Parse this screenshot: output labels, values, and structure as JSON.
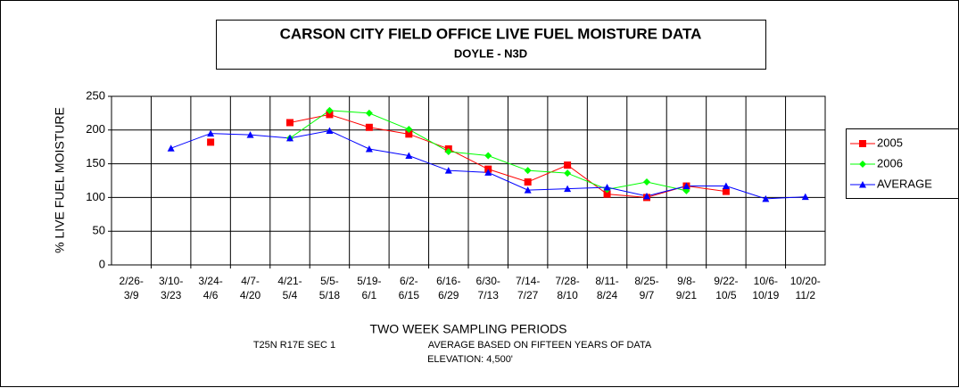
{
  "chart_data": {
    "type": "line",
    "title": "CARSON CITY FIELD OFFICE  LIVE FUEL MOISTURE DATA",
    "subtitle": "DOYLE - N3D",
    "y_label": "% LIVE FUEL MOISTURE",
    "x_label": "TWO WEEK SAMPLING PERIODS",
    "notes": [
      "T25N R17E SEC 1",
      "AVERAGE BASED ON FIFTEEN YEARS OF DATA",
      "ELEVATION: 4,500'"
    ],
    "categories": [
      "2/26- 3/9",
      "3/10- 3/23",
      "3/24- 4/6",
      "4/7- 4/20",
      "4/21- 5/4",
      "5/5- 5/18",
      "5/19- 6/1",
      "6/2- 6/15",
      "6/16- 6/29",
      "6/30- 7/13",
      "7/14- 7/27",
      "7/28- 8/10",
      "8/11- 8/24",
      "8/25- 9/7",
      "9/8- 9/21",
      "9/22- 10/5",
      "10/6- 10/19",
      "10/20- 11/2"
    ],
    "series": [
      {
        "name": "2005",
        "color": "#ff0000",
        "marker": "square",
        "values": [
          null,
          null,
          182,
          null,
          211,
          223,
          204,
          194,
          172,
          142,
          123,
          148,
          105,
          100,
          117,
          109,
          null,
          null
        ]
      },
      {
        "name": "2006",
        "color": "#00ff00",
        "marker": "diamond",
        "values": [
          null,
          null,
          null,
          null,
          188,
          229,
          225,
          201,
          168,
          162,
          140,
          136,
          112,
          123,
          110,
          null,
          null,
          null
        ]
      },
      {
        "name": "AVERAGE",
        "color": "#0000ff",
        "marker": "triangle",
        "values": [
          null,
          173,
          195,
          193,
          188,
          199,
          172,
          162,
          140,
          137,
          111,
          113,
          115,
          102,
          117,
          117,
          98,
          101
        ]
      }
    ],
    "ylim": [
      0,
      250
    ],
    "yticks": [
      0,
      50,
      100,
      150,
      200,
      250
    ],
    "grid": true,
    "legend": "right"
  }
}
